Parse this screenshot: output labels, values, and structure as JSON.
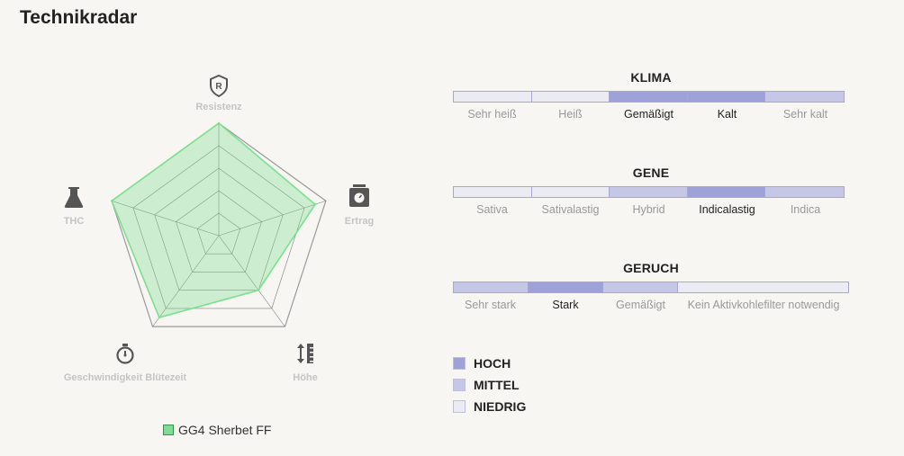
{
  "title": "Technikradar",
  "colors": {
    "high": "#9fa2d8",
    "medium": "#c6c7e6",
    "low": "#ebebf4",
    "series_fill": "rgba(126, 220, 146, 0.35)",
    "series_stroke": "#7be08f",
    "outer": "#9a9a9a",
    "grid": "#7f7f7f",
    "icon": "#555555"
  },
  "chart_data": {
    "type": "radar",
    "axes": [
      {
        "label": "Resistenz",
        "icon": "shield-r-icon"
      },
      {
        "label": "Ertrag",
        "icon": "scale-icon"
      },
      {
        "label": "Höhe",
        "icon": "ruler-icon"
      },
      {
        "label": "Geschwindigkeit Blütezeit",
        "icon": "stopwatch-icon"
      },
      {
        "label": "THC",
        "icon": "flask-icon"
      }
    ],
    "range": [
      0,
      5
    ],
    "series": [
      {
        "name": "GG4 Sherbet FF",
        "values": [
          5,
          4.5,
          3,
          4.5,
          5
        ]
      }
    ]
  },
  "scales": [
    {
      "title": "KLIMA",
      "segments": [
        {
          "label": "Sehr heiß",
          "level": "low"
        },
        {
          "label": "Heiß",
          "level": "low"
        },
        {
          "label": "Gemäßigt",
          "level": "high"
        },
        {
          "label": "Kalt",
          "level": "high"
        },
        {
          "label": "Sehr kalt",
          "level": "medium"
        }
      ]
    },
    {
      "title": "GENE",
      "segments": [
        {
          "label": "Sativa",
          "level": "low"
        },
        {
          "label": "Sativalastig",
          "level": "low"
        },
        {
          "label": "Hybrid",
          "level": "medium"
        },
        {
          "label": "Indicalastig",
          "level": "high"
        },
        {
          "label": "Indica",
          "level": "medium"
        }
      ]
    },
    {
      "title": "GERUCH",
      "segments": [
        {
          "label": "Sehr stark",
          "level": "medium"
        },
        {
          "label": "Stark",
          "level": "high"
        },
        {
          "label": "Gemäßigt",
          "level": "medium"
        },
        {
          "label": "Kein Aktivkohlefilter notwendig",
          "level": "low"
        }
      ]
    }
  ],
  "key": [
    {
      "label": "HOCH",
      "level": "high"
    },
    {
      "label": "MITTEL",
      "level": "medium"
    },
    {
      "label": "NIEDRIG",
      "level": "low"
    }
  ]
}
